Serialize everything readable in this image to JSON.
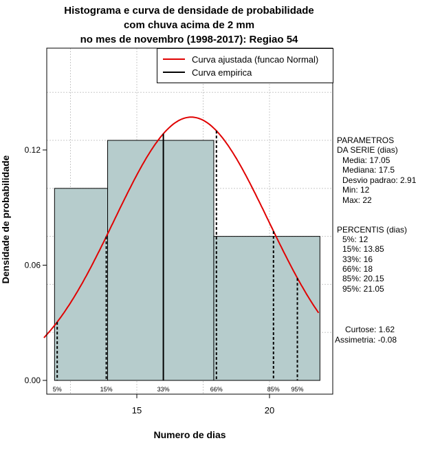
{
  "chart_data": {
    "type": "bar",
    "title_lines": [
      "Histograma e curva de densidade de probabilidade",
      "com chuva acima de 2 mm",
      "no mes de novembro (1998-2017): Regiao 54"
    ],
    "xlabel": "Numero de dias",
    "ylabel": "Densidade de probabilidade",
    "xlim": [
      11.5,
      22.4
    ],
    "ylim": [
      0,
      0.17
    ],
    "xticks": [
      15,
      20
    ],
    "yticks": [
      0.0,
      0.06,
      0.12
    ],
    "ytick_labels": [
      "0.00",
      "0.06",
      "0.12"
    ],
    "bins": [
      {
        "from": 11.9,
        "to": 13.9,
        "density": 0.1
      },
      {
        "from": 13.9,
        "to": 17.9,
        "density": 0.125
      },
      {
        "from": 17.9,
        "to": 21.9,
        "density": 0.075
      }
    ],
    "normal_curve": {
      "mean": 17.05,
      "sd": 2.91
    },
    "percentile_lines": [
      {
        "label": "5%",
        "x": 12,
        "style": "dashed"
      },
      {
        "label": "15%",
        "x": 13.85,
        "style": "dashed"
      },
      {
        "label": "33%",
        "x": 16,
        "style": "solid"
      },
      {
        "label": "66%",
        "x": 18,
        "style": "dashed"
      },
      {
        "label": "85%",
        "x": 20.15,
        "style": "dashed"
      },
      {
        "label": "95%",
        "x": 21.05,
        "style": "dashed"
      }
    ],
    "legend": {
      "placement": "top-right",
      "entries": [
        {
          "label": "Curva ajustada (funcao Normal)",
          "color": "#e00000"
        },
        {
          "label": "Curva empirica",
          "color": "#000000"
        }
      ]
    },
    "bar_color": "#b6cccc",
    "grid": true
  },
  "side_panel": {
    "parametros_title_1": "PARAMETROS",
    "parametros_title_2": "DA SERIE (dias)",
    "media": "Media: 17.05",
    "mediana": "Mediana: 17.5",
    "desvio": "Desvio padrao: 2.91",
    "min": "Min: 12",
    "max": "Max: 22",
    "percentis_title": "PERCENTIS (dias)",
    "p5": "5%: 12",
    "p15": "15%: 13.85",
    "p33": "33%: 16",
    "p66": "66%: 18",
    "p85": "85%: 20.15",
    "p95": "95%: 21.05",
    "curtose": "Curtose: 1.62",
    "assimetria": "Assimetria: -0.08"
  }
}
